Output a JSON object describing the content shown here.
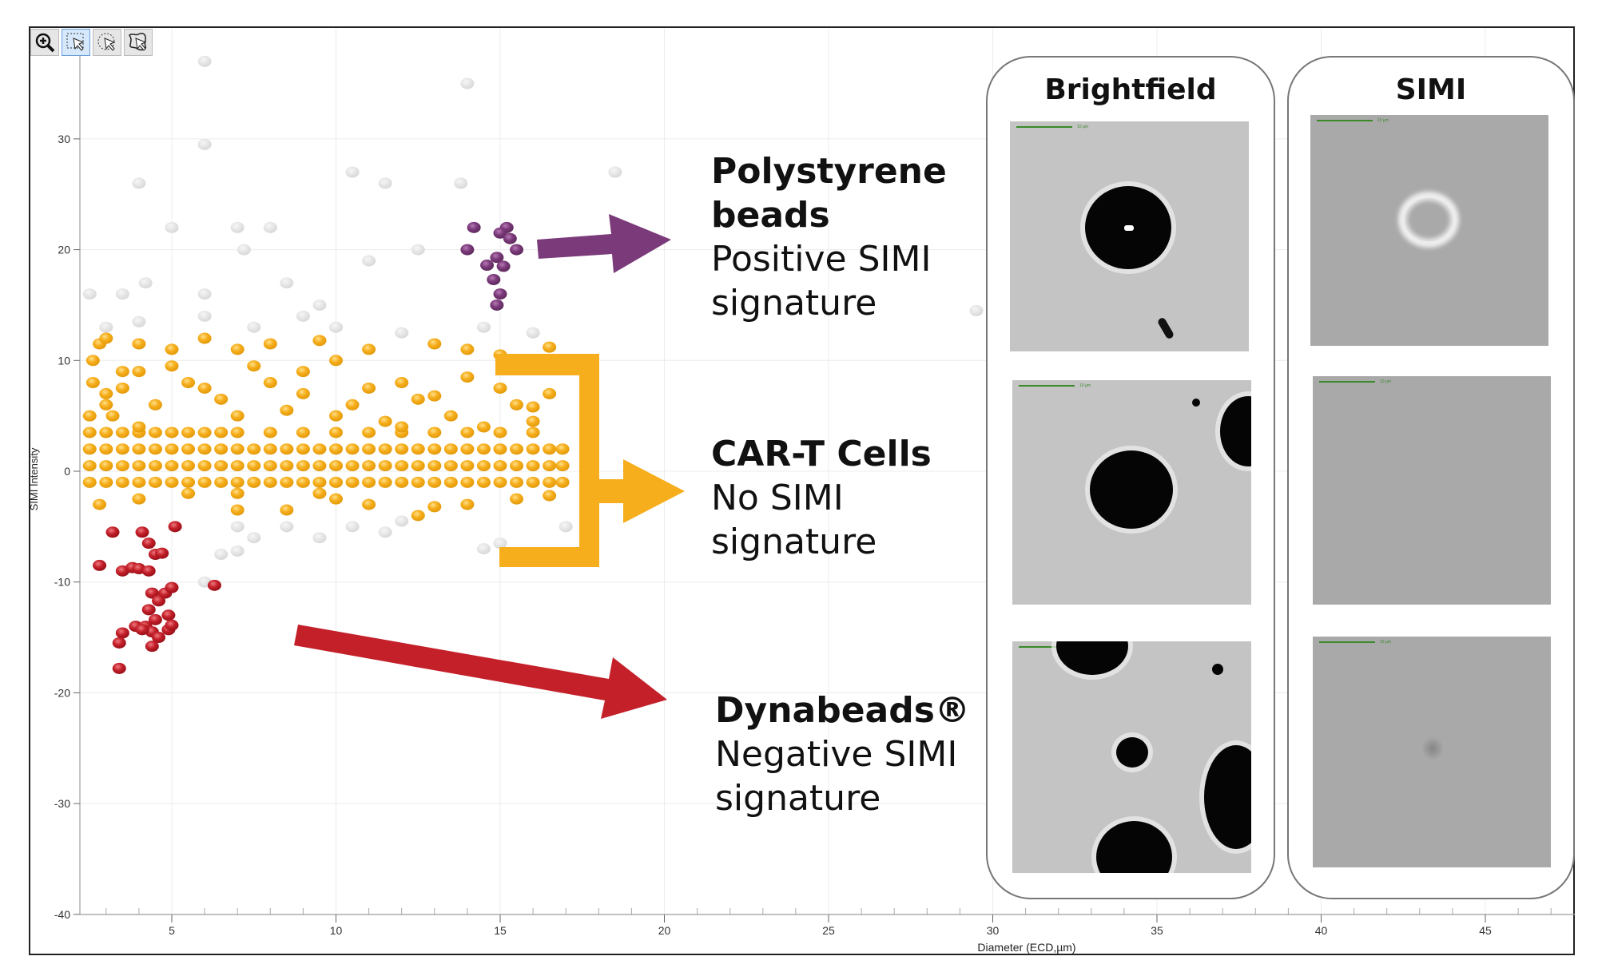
{
  "toolbar": {
    "buttons": [
      {
        "icon": "zoom-in-icon",
        "active": false
      },
      {
        "icon": "rectangle-select-icon",
        "active": true
      },
      {
        "icon": "lasso-circle-select-icon",
        "active": false
      },
      {
        "icon": "freeform-select-icon",
        "active": false
      }
    ]
  },
  "chart_data": {
    "type": "scatter",
    "xlabel": "Diameter (ECD,µm)",
    "ylabel": "SIMI Intensity",
    "xlim": [
      2.2,
      47.5
    ],
    "ylim": [
      -40,
      40
    ],
    "xticks": [
      5,
      10,
      15,
      20,
      25,
      30,
      35,
      40,
      45
    ],
    "yticks": [
      -40,
      -30,
      -20,
      -10,
      0,
      10,
      20,
      30
    ],
    "grid": true,
    "series": [
      {
        "color": "#f6ae1c",
        "points": [
          [
            2.5,
            -1
          ],
          [
            3,
            -1
          ],
          [
            3.5,
            -1
          ],
          [
            4,
            -1
          ],
          [
            4.5,
            -1
          ],
          [
            5,
            -1
          ],
          [
            5.5,
            -1
          ],
          [
            6,
            -1
          ],
          [
            6.5,
            -1
          ],
          [
            7,
            -1
          ],
          [
            7.5,
            -1
          ],
          [
            8,
            -1
          ],
          [
            8.5,
            -1
          ],
          [
            9,
            -1
          ],
          [
            9.5,
            -1
          ],
          [
            10,
            -1
          ],
          [
            10.5,
            -1
          ],
          [
            11,
            -1
          ],
          [
            11.5,
            -1
          ],
          [
            12,
            -1
          ],
          [
            12.5,
            -1
          ],
          [
            13,
            -1
          ],
          [
            13.5,
            -1
          ],
          [
            14,
            -1
          ],
          [
            14.5,
            -1
          ],
          [
            15,
            -1
          ],
          [
            15.5,
            -1
          ],
          [
            16,
            -1
          ],
          [
            16.5,
            -1
          ],
          [
            16.9,
            -1
          ],
          [
            2.5,
            0.5
          ],
          [
            3,
            0.5
          ],
          [
            3.5,
            0.5
          ],
          [
            4,
            0.5
          ],
          [
            4.5,
            0.5
          ],
          [
            5,
            0.5
          ],
          [
            5.5,
            0.5
          ],
          [
            6,
            0.5
          ],
          [
            6.5,
            0.5
          ],
          [
            7,
            0.5
          ],
          [
            7.5,
            0.5
          ],
          [
            8,
            0.5
          ],
          [
            8.5,
            0.5
          ],
          [
            9,
            0.5
          ],
          [
            9.5,
            0.5
          ],
          [
            10,
            0.5
          ],
          [
            10.5,
            0.5
          ],
          [
            11,
            0.5
          ],
          [
            11.5,
            0.5
          ],
          [
            12,
            0.5
          ],
          [
            12.5,
            0.5
          ],
          [
            13,
            0.5
          ],
          [
            13.5,
            0.5
          ],
          [
            14,
            0.5
          ],
          [
            14.5,
            0.5
          ],
          [
            15,
            0.5
          ],
          [
            15.5,
            0.5
          ],
          [
            16,
            0.5
          ],
          [
            16.5,
            0.5
          ],
          [
            16.9,
            0.5
          ],
          [
            2.5,
            2
          ],
          [
            3,
            2
          ],
          [
            3.5,
            2
          ],
          [
            4,
            2
          ],
          [
            4.5,
            2
          ],
          [
            5,
            2
          ],
          [
            5.5,
            2
          ],
          [
            6,
            2
          ],
          [
            6.5,
            2
          ],
          [
            7,
            2
          ],
          [
            7.5,
            2
          ],
          [
            8,
            2
          ],
          [
            8.5,
            2
          ],
          [
            9,
            2
          ],
          [
            9.5,
            2
          ],
          [
            10,
            2
          ],
          [
            10.5,
            2
          ],
          [
            11,
            2
          ],
          [
            11.5,
            2
          ],
          [
            12,
            2
          ],
          [
            12.5,
            2
          ],
          [
            13,
            2
          ],
          [
            13.5,
            2
          ],
          [
            14,
            2
          ],
          [
            14.5,
            2
          ],
          [
            15,
            2
          ],
          [
            15.5,
            2
          ],
          [
            16,
            2
          ],
          [
            16.5,
            2
          ],
          [
            16.9,
            2
          ],
          [
            2.5,
            3.5
          ],
          [
            3,
            3.5
          ],
          [
            3.5,
            3.5
          ],
          [
            4,
            3.5
          ],
          [
            4.5,
            3.5
          ],
          [
            5,
            3.5
          ],
          [
            5.5,
            3.5
          ],
          [
            6,
            3.5
          ],
          [
            6.5,
            3.5
          ],
          [
            7,
            3.5
          ],
          [
            8,
            3.5
          ],
          [
            9,
            3.5
          ],
          [
            10,
            3.5
          ],
          [
            11,
            3.5
          ],
          [
            12,
            3.5
          ],
          [
            13,
            3.5
          ],
          [
            14,
            3.5
          ],
          [
            15,
            3.5
          ],
          [
            16,
            3.5
          ],
          [
            2.5,
            5
          ],
          [
            3,
            6
          ],
          [
            3.5,
            7.5
          ],
          [
            4,
            9
          ],
          [
            2.6,
            10
          ],
          [
            2.6,
            8
          ],
          [
            3.2,
            5
          ],
          [
            4,
            4
          ],
          [
            2.8,
            11.5
          ],
          [
            3,
            12
          ],
          [
            4,
            11.5
          ],
          [
            5,
            11
          ],
          [
            6,
            12
          ],
          [
            7,
            11
          ],
          [
            8,
            11.5
          ],
          [
            9.5,
            11.8
          ],
          [
            11,
            11
          ],
          [
            12,
            8
          ],
          [
            13,
            11.5
          ],
          [
            14,
            11
          ],
          [
            15,
            10.5
          ],
          [
            16.5,
            11.2
          ],
          [
            3.5,
            9
          ],
          [
            5.5,
            8
          ],
          [
            7.5,
            9.5
          ],
          [
            9,
            7
          ],
          [
            10.5,
            6
          ],
          [
            12.5,
            6.5
          ],
          [
            13.5,
            5
          ],
          [
            15.5,
            6
          ],
          [
            16.5,
            7
          ],
          [
            4.5,
            6
          ],
          [
            6.5,
            6.5
          ],
          [
            8.5,
            5.5
          ],
          [
            10,
            5
          ],
          [
            11.5,
            4.5
          ],
          [
            14.5,
            4
          ],
          [
            16,
            4.5
          ],
          [
            3,
            7
          ],
          [
            5,
            9.5
          ],
          [
            6,
            7.5
          ],
          [
            7,
            5
          ],
          [
            8,
            8
          ],
          [
            9,
            9
          ],
          [
            10,
            10
          ],
          [
            11,
            7.5
          ],
          [
            12,
            4
          ],
          [
            13,
            6.8
          ],
          [
            14,
            8.5
          ],
          [
            15,
            7.5
          ],
          [
            16,
            5.8
          ],
          [
            2.8,
            -3
          ],
          [
            4,
            -2.5
          ],
          [
            5.5,
            -2
          ],
          [
            7,
            -2
          ],
          [
            8.5,
            -3.5
          ],
          [
            9.5,
            -2
          ],
          [
            11,
            -3
          ],
          [
            12.5,
            -4
          ],
          [
            14,
            -3
          ],
          [
            15.5,
            -2.5
          ],
          [
            16.5,
            -2.2
          ],
          [
            7,
            -3.5
          ],
          [
            10,
            -2.5
          ],
          [
            13,
            -3.2
          ]
        ]
      },
      {
        "color": "#7b3a7a",
        "points": [
          [
            14.2,
            22
          ],
          [
            15.2,
            22
          ],
          [
            15,
            21.5
          ],
          [
            15.3,
            21
          ],
          [
            14,
            20
          ],
          [
            15.5,
            20
          ],
          [
            14.9,
            19.3
          ],
          [
            14.6,
            18.6
          ],
          [
            15.1,
            18.5
          ],
          [
            14.8,
            17.3
          ],
          [
            15,
            16
          ],
          [
            14.9,
            15
          ]
        ]
      },
      {
        "color": "#c4202a",
        "points": [
          [
            2.8,
            -8.5
          ],
          [
            3.2,
            -5.5
          ],
          [
            4.1,
            -5.5
          ],
          [
            3.5,
            -9
          ],
          [
            3.8,
            -8.7
          ],
          [
            4,
            -8.8
          ],
          [
            4.3,
            -9
          ],
          [
            4.3,
            -6.5
          ],
          [
            4.5,
            -7.5
          ],
          [
            4.7,
            -7.4
          ],
          [
            4.4,
            -11
          ],
          [
            4.8,
            -11
          ],
          [
            5,
            -10.5
          ],
          [
            4.6,
            -11.7
          ],
          [
            4.3,
            -12.5
          ],
          [
            4.5,
            -13.4
          ],
          [
            4.9,
            -13
          ],
          [
            3.9,
            -14
          ],
          [
            4.2,
            -14
          ],
          [
            4.4,
            -14.5
          ],
          [
            4.6,
            -15
          ],
          [
            4.9,
            -14.3
          ],
          [
            5,
            -13.9
          ],
          [
            3.5,
            -14.6
          ],
          [
            3.4,
            -15.5
          ],
          [
            4.4,
            -15.8
          ],
          [
            3.4,
            -17.8
          ],
          [
            5.1,
            -5
          ],
          [
            6.3,
            -10.3
          ],
          [
            4.1,
            -14.3
          ]
        ]
      },
      {
        "color": "#dcdcdc",
        "points": [
          [
            4,
            26
          ],
          [
            6,
            29.5
          ],
          [
            10.5,
            27
          ],
          [
            11.5,
            26
          ],
          [
            5,
            22
          ],
          [
            7,
            22
          ],
          [
            8,
            22
          ],
          [
            3.5,
            16
          ],
          [
            4.2,
            17
          ],
          [
            6,
            16
          ],
          [
            7.2,
            20
          ],
          [
            8.5,
            17
          ],
          [
            9.5,
            15
          ],
          [
            11,
            19
          ],
          [
            12.5,
            20
          ],
          [
            13.8,
            26
          ],
          [
            3,
            13
          ],
          [
            4,
            13.5
          ],
          [
            6,
            14
          ],
          [
            7.5,
            13
          ],
          [
            9,
            14
          ],
          [
            10,
            13
          ],
          [
            12,
            12.5
          ],
          [
            14.5,
            13
          ],
          [
            16,
            12.5
          ],
          [
            7,
            -5
          ],
          [
            7.5,
            -6
          ],
          [
            8.5,
            -5
          ],
          [
            9.5,
            -6
          ],
          [
            10.5,
            -5
          ],
          [
            11.5,
            -5.5
          ],
          [
            12,
            -4.5
          ],
          [
            6.5,
            -7.5
          ],
          [
            7,
            -7.2
          ],
          [
            6,
            -10
          ],
          [
            14.5,
            -7
          ],
          [
            15,
            -6.5
          ],
          [
            17,
            -5
          ],
          [
            14,
            35
          ],
          [
            6,
            37
          ],
          [
            2.5,
            16
          ],
          [
            18.5,
            27
          ],
          [
            29.5,
            14.5
          ]
        ]
      }
    ]
  },
  "annotations": {
    "polystyrene": {
      "title_line1": "Polystyrene",
      "title_line2": "beads",
      "desc_line1": "Positive SIMI",
      "desc_line2": "signature",
      "arrow_color": "#7b3a7a"
    },
    "cart": {
      "title": "CAR-T Cells",
      "desc_line1": "No SIMI",
      "desc_line2": "signature",
      "arrow_color": "#f6ae1c"
    },
    "dynabeads": {
      "title": "Dynabeads®",
      "desc_line1": "Negative SIMI",
      "desc_line2": "signature",
      "arrow_color": "#c4202a"
    }
  },
  "panels": {
    "brightfield": {
      "title": "Brightfield"
    },
    "simi": {
      "title": "SIMI"
    },
    "scale_bar_label": "10 µm"
  }
}
